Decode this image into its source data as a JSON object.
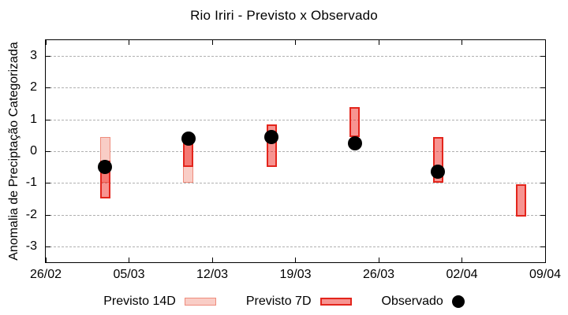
{
  "title": "Rio Iriri - Previsto x Observado",
  "ylabel": "Anomalia de Preciptação Categorizada",
  "legend": {
    "p14": "Previsto 14D",
    "p7": "Previsto 7D",
    "obs": "Observado"
  },
  "colors": {
    "p14_fill": "#f9cdc6",
    "p14_border": "#ef8c7c",
    "p7_fill": "rgba(237,28,21,0.47)",
    "p7_border": "#e3251c",
    "observed": "#000000",
    "grid": "#b0b0b0",
    "axis": "#000000",
    "background": "#ffffff"
  },
  "chart_data": {
    "type": "bar",
    "subtype": "vertical-range-bars-with-observed-points",
    "title": "Rio Iriri - Previsto x Observado",
    "xlabel": "",
    "ylabel": "Anomalia de Preciptação Categorizada",
    "ylim": [
      -3.5,
      3.5
    ],
    "yticks": [
      3,
      2,
      1,
      0,
      -1,
      -2,
      -3
    ],
    "xtick_labels": [
      "26/02",
      "05/03",
      "12/03",
      "19/03",
      "26/03",
      "02/04",
      "09/04"
    ],
    "xtick_days": [
      0,
      7,
      14,
      21,
      28,
      35,
      42
    ],
    "x_total_days": 42,
    "grid": "horizontal-dashed",
    "legend_position": "bottom-center",
    "series": [
      {
        "name": "Previsto 14D",
        "style": "p14",
        "type": "range",
        "points": [
          {
            "date": "03/03",
            "day": 5,
            "low": -1.0,
            "high": 0.45
          },
          {
            "date": "10/03",
            "day": 12,
            "low": -1.0,
            "high": 0.45
          }
        ]
      },
      {
        "name": "Previsto 7D",
        "style": "p7",
        "type": "range",
        "points": [
          {
            "date": "03/03",
            "day": 5,
            "low": -1.5,
            "high": -0.3
          },
          {
            "date": "10/03",
            "day": 12,
            "low": -0.5,
            "high": 0.45
          },
          {
            "date": "17/03",
            "day": 19,
            "low": -0.5,
            "high": 0.85
          },
          {
            "date": "24/03",
            "day": 26,
            "low": 0.45,
            "high": 1.4
          },
          {
            "date": "31/03",
            "day": 33,
            "low": -1.0,
            "high": 0.45
          },
          {
            "date": "07/04",
            "day": 40,
            "low": -2.05,
            "high": -1.05
          }
        ]
      },
      {
        "name": "Observado",
        "style": "obs",
        "type": "points",
        "points": [
          {
            "date": "03/03",
            "day": 5,
            "value": -0.5
          },
          {
            "date": "10/03",
            "day": 12,
            "value": 0.4
          },
          {
            "date": "17/03",
            "day": 19,
            "value": 0.45
          },
          {
            "date": "24/03",
            "day": 26,
            "value": 0.25
          },
          {
            "date": "31/03",
            "day": 33,
            "value": -0.65
          }
        ]
      }
    ]
  }
}
